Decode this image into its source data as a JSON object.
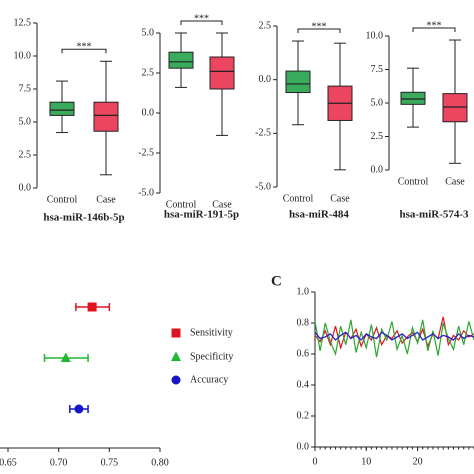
{
  "chart_data": [
    {
      "type": "box",
      "title": "hsa-miR-146b-5p",
      "categories": [
        "Control",
        "Case"
      ],
      "colors": [
        "#3aaa5c",
        "#ec4560"
      ],
      "boxes": [
        {
          "whisker_low": 4.2,
          "q1": 5.5,
          "median": 5.9,
          "q3": 6.5,
          "whisker_high": 8.1
        },
        {
          "whisker_low": 1.0,
          "q1": 4.3,
          "median": 5.5,
          "q3": 6.5,
          "whisker_high": 9.6
        }
      ],
      "significance": "***",
      "ylim": [
        0,
        12.5
      ],
      "yticks": [
        {
          "value": 0,
          "label": "0.0"
        },
        {
          "value": 2.5,
          "label": "2.5"
        },
        {
          "value": 5,
          "label": "5.0"
        },
        {
          "value": 7.5,
          "label": "7.5"
        },
        {
          "value": 10,
          "label": "10.0"
        },
        {
          "value": 12.5,
          "label": "12.5"
        }
      ]
    },
    {
      "type": "box",
      "title": "hsa-miR-191-5p",
      "categories": [
        "Control",
        "Case"
      ],
      "colors": [
        "#3aaa5c",
        "#ec4560"
      ],
      "boxes": [
        {
          "whisker_low": 1.6,
          "q1": 2.8,
          "median": 3.2,
          "q3": 3.8,
          "whisker_high": 5.0
        },
        {
          "whisker_low": -1.4,
          "q1": 1.5,
          "median": 2.6,
          "q3": 3.5,
          "whisker_high": 5.0
        }
      ],
      "significance": "***",
      "ylim": [
        -5,
        5
      ],
      "yticks": [
        {
          "value": -5,
          "label": "-5.0"
        },
        {
          "value": -2.5,
          "label": "-2.5"
        },
        {
          "value": 0,
          "label": "0.0"
        },
        {
          "value": 2.5,
          "label": "2.5"
        },
        {
          "value": 5,
          "label": "5.0"
        }
      ]
    },
    {
      "type": "box",
      "title": "hsa-miR-484",
      "categories": [
        "Control",
        "Case"
      ],
      "colors": [
        "#3aaa5c",
        "#ec4560"
      ],
      "boxes": [
        {
          "whisker_low": -2.1,
          "q1": -0.6,
          "median": -0.2,
          "q3": 0.4,
          "whisker_high": 1.8
        },
        {
          "whisker_low": -4.2,
          "q1": -1.9,
          "median": -1.1,
          "q3": -0.3,
          "whisker_high": 1.7
        }
      ],
      "significance": "***",
      "ylim": [
        -5,
        2.5
      ],
      "yticks": [
        {
          "value": -5,
          "label": "-5.0"
        },
        {
          "value": -2.5,
          "label": "-2.5"
        },
        {
          "value": 0,
          "label": "0.0"
        },
        {
          "value": 2.5,
          "label": "2.5"
        }
      ]
    },
    {
      "type": "box",
      "title": "hsa-miR-574-3",
      "categories": [
        "Control",
        "Case"
      ],
      "colors": [
        "#3aaa5c",
        "#ec4560"
      ],
      "boxes": [
        {
          "whisker_low": 3.2,
          "q1": 4.9,
          "median": 5.3,
          "q3": 5.8,
          "whisker_high": 7.6
        },
        {
          "whisker_low": 0.5,
          "q1": 3.6,
          "median": 4.7,
          "q3": 5.7,
          "whisker_high": 9.7
        }
      ],
      "significance": "***",
      "ylim": [
        0,
        10
      ],
      "yticks": [
        {
          "value": 0,
          "label": "0.0"
        },
        {
          "value": 2.5,
          "label": "2.5"
        },
        {
          "value": 5,
          "label": "5.0"
        },
        {
          "value": 7.5,
          "label": "7.5"
        },
        {
          "value": 10,
          "label": "10.0"
        }
      ]
    },
    {
      "type": "forest",
      "xlim": [
        0.65,
        0.8
      ],
      "xticks": [
        {
          "value": 0.65,
          "label": "0.65"
        },
        {
          "value": 0.7,
          "label": "0.70"
        },
        {
          "value": 0.75,
          "label": "0.75"
        },
        {
          "value": 0.8,
          "label": "0.80"
        }
      ],
      "series": [
        {
          "name": "Sensitivity",
          "color": "#e0141e",
          "marker": "square",
          "value": 0.733,
          "low": 0.717,
          "high": 0.75
        },
        {
          "name": "Specificity",
          "color": "#1fb832",
          "marker": "triangle",
          "value": 0.707,
          "low": 0.686,
          "high": 0.729
        },
        {
          "name": "Accuracy",
          "color": "#1414c8",
          "marker": "circle",
          "value": 0.72,
          "low": 0.711,
          "high": 0.729
        }
      ]
    },
    {
      "type": "line",
      "panel_label": "C",
      "xlim": [
        0,
        31
      ],
      "ylim": [
        0,
        1
      ],
      "xticks": [
        0,
        10,
        20
      ],
      "yticks": [
        {
          "value": 0,
          "label": "0.0"
        },
        {
          "value": 0.2,
          "label": "0.2"
        },
        {
          "value": 0.4,
          "label": "0.4"
        },
        {
          "value": 0.6,
          "label": "0.6"
        },
        {
          "value": 0.8,
          "label": "0.8"
        },
        {
          "value": 1,
          "label": "1.0"
        }
      ],
      "x": [
        0,
        1,
        2,
        3,
        4,
        5,
        6,
        7,
        8,
        9,
        10,
        11,
        12,
        13,
        14,
        15,
        16,
        17,
        18,
        19,
        20,
        21,
        22,
        23,
        24,
        25,
        26,
        27,
        28,
        29,
        30,
        31
      ],
      "series": [
        {
          "color": "#e0141e",
          "values": [
            0.72,
            0.68,
            0.75,
            0.66,
            0.78,
            0.64,
            0.74,
            0.7,
            0.76,
            0.65,
            0.73,
            0.69,
            0.77,
            0.66,
            0.72,
            0.7,
            0.75,
            0.67,
            0.71,
            0.74,
            0.68,
            0.76,
            0.65,
            0.73,
            0.7,
            0.84,
            0.66,
            0.72,
            0.69,
            0.75,
            0.71,
            0.73
          ]
        },
        {
          "color": "#2aa830",
          "values": [
            0.81,
            0.62,
            0.8,
            0.68,
            0.6,
            0.78,
            0.66,
            0.82,
            0.61,
            0.74,
            0.64,
            0.79,
            0.58,
            0.76,
            0.69,
            0.81,
            0.63,
            0.72,
            0.6,
            0.77,
            0.67,
            0.82,
            0.62,
            0.75,
            0.59,
            0.8,
            0.7,
            0.63,
            0.78,
            0.66,
            0.81,
            0.69
          ]
        },
        {
          "color": "#1a1acc",
          "values": [
            0.74,
            0.7,
            0.71,
            0.73,
            0.69,
            0.72,
            0.74,
            0.7,
            0.72,
            0.69,
            0.73,
            0.71,
            0.7,
            0.74,
            0.72,
            0.69,
            0.71,
            0.73,
            0.7,
            0.72,
            0.74,
            0.69,
            0.71,
            0.73,
            0.7,
            0.72,
            0.71,
            0.69,
            0.73,
            0.7,
            0.72,
            0.71
          ]
        }
      ]
    }
  ]
}
